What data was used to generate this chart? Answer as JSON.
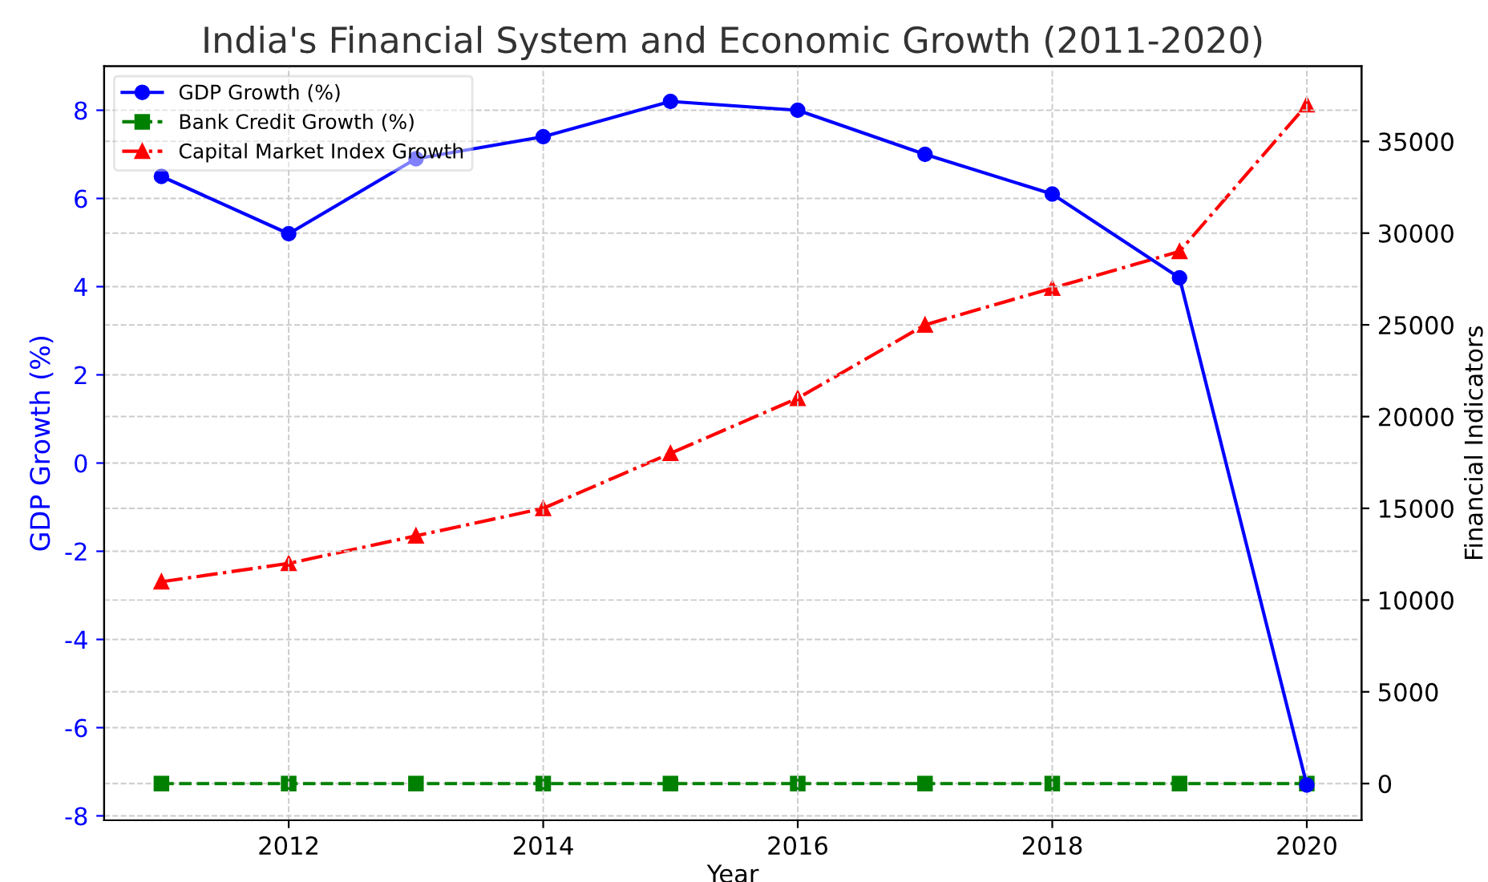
{
  "chart_data": {
    "type": "line",
    "title": "India's Financial System and Economic Growth (2011-2020)",
    "xlabel": "Year",
    "ylabel": "GDP Growth (%)",
    "y2label": "Financial Indicators",
    "x": [
      2011,
      2012,
      2013,
      2014,
      2015,
      2016,
      2017,
      2018,
      2019,
      2020
    ],
    "series": [
      {
        "name": "GDP Growth (%)",
        "color": "#0000ff",
        "marker": "circle",
        "line_style": "solid",
        "values": [
          6.5,
          5.2,
          6.9,
          7.4,
          8.2,
          8.0,
          7.0,
          6.1,
          4.2,
          -7.3
        ]
      },
      {
        "name": "Bank Credit Growth (%)",
        "color": "#008000",
        "marker": "square",
        "line_style": "dashed",
        "axis": "y2",
        "values": [
          0,
          0,
          0,
          0,
          0,
          0,
          0,
          0,
          0,
          0
        ]
      },
      {
        "name": "Capital Market Index Growth",
        "color": "#ff0000",
        "marker": "triangle",
        "line_style": "dashdot",
        "axis": "y2",
        "values": [
          11000,
          12000,
          13500,
          15000,
          18000,
          21000,
          25000,
          27000,
          29000,
          37000
        ]
      }
    ],
    "xlim": [
      2010.55,
      2020.43
    ],
    "xticks": [
      2012,
      2014,
      2016,
      2018,
      2020
    ],
    "ylim": [
      -8.1,
      9.0
    ],
    "yticks": [
      -8,
      -6,
      -4,
      -2,
      0,
      2,
      4,
      6,
      8
    ],
    "y2lim": [
      -2000,
      39100
    ],
    "y2ticks": [
      0,
      5000,
      10000,
      15000,
      20000,
      25000,
      30000,
      35000
    ],
    "grid": true,
    "legend": "top left"
  }
}
